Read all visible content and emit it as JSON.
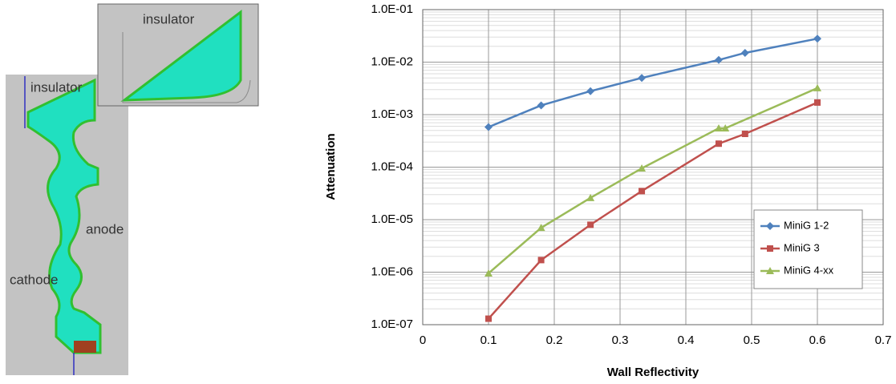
{
  "figure": {
    "labels": [
      "insulator",
      "insulator",
      "anode",
      "cathode"
    ]
  },
  "chart_data": {
    "type": "line",
    "x_label": "Wall Reflectivity",
    "y_label": "Attenuation",
    "xlim": [
      0,
      0.7
    ],
    "xticks": [
      0,
      0.1,
      0.2,
      0.3,
      0.4,
      0.5,
      0.6,
      0.7
    ],
    "ylim": [
      1e-07,
      0.1
    ],
    "log_y": true,
    "yticks": [
      {
        "value": 1e-07,
        "label": "1.0E-07"
      },
      {
        "value": 1e-06,
        "label": "1.0E-06"
      },
      {
        "value": 1e-05,
        "label": "1.0E-05"
      },
      {
        "value": 0.0001,
        "label": "1.0E-04"
      },
      {
        "value": 0.001,
        "label": "1.0E-03"
      },
      {
        "value": 0.01,
        "label": "1.0E-02"
      },
      {
        "value": 0.1,
        "label": "1.0E-01"
      }
    ],
    "grid": true,
    "minor_grid": true,
    "legend": "lower right",
    "series": [
      {
        "name": "MiniG 1-2",
        "color": "#4f81bd",
        "marker": "diamond",
        "x": [
          0.1,
          0.18,
          0.255,
          0.333,
          0.45,
          0.49,
          0.6
        ],
        "values": [
          0.00058,
          0.0015,
          0.0028,
          0.005,
          0.011,
          0.015,
          0.028
        ]
      },
      {
        "name": "MiniG 3",
        "color": "#c0504d",
        "marker": "square",
        "x": [
          0.1,
          0.18,
          0.255,
          0.333,
          0.45,
          0.49,
          0.6
        ],
        "values": [
          1.3e-07,
          1.7e-06,
          8e-06,
          3.5e-05,
          0.00028,
          0.00043,
          0.0017
        ]
      },
      {
        "name": "MiniG 4-xx",
        "color": "#9bbb59",
        "marker": "triangle",
        "x": [
          0.1,
          0.18,
          0.255,
          0.333,
          0.45,
          0.46,
          0.6
        ],
        "values": [
          9.5e-07,
          7e-06,
          2.6e-05,
          9.5e-05,
          0.00055,
          0.00055,
          0.0032
        ]
      }
    ]
  }
}
